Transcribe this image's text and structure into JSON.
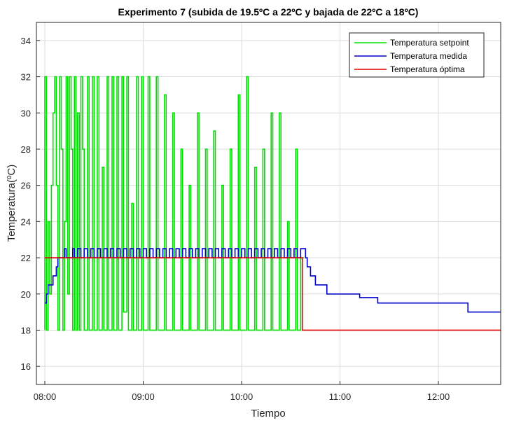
{
  "chart_data": {
    "type": "line",
    "title": "Experimento 7 (subida de 19.5ºC a 22ºC y bajada de 22ºC a 18ºC)",
    "xlabel": "Tiempo",
    "ylabel": "Temperatura(ºC)",
    "xlim": [
      "08:00",
      "12:38"
    ],
    "ylim": [
      15,
      35
    ],
    "xticks": [
      "08:00",
      "09:00",
      "10:00",
      "11:00",
      "12:00"
    ],
    "yticks": [
      16,
      18,
      20,
      22,
      24,
      26,
      28,
      30,
      32,
      34
    ],
    "grid": true,
    "legend_position": "top-right",
    "series": [
      {
        "name": "Temperatura setpoint",
        "color": "#00e000",
        "style": "step",
        "points": [
          [
            "08:00",
            18
          ],
          [
            "08:00",
            32
          ],
          [
            "08:01",
            18
          ],
          [
            "08:02",
            24
          ],
          [
            "08:03",
            20
          ],
          [
            "08:04",
            26
          ],
          [
            "08:05",
            30
          ],
          [
            "08:06",
            32
          ],
          [
            "08:07",
            26
          ],
          [
            "08:08",
            18
          ],
          [
            "08:09",
            32
          ],
          [
            "08:10",
            28
          ],
          [
            "08:11",
            18
          ],
          [
            "08:12",
            24
          ],
          [
            "08:13",
            32
          ],
          [
            "08:14",
            20
          ],
          [
            "08:15",
            32
          ],
          [
            "08:16",
            28
          ],
          [
            "08:17",
            18
          ],
          [
            "08:18",
            32
          ],
          [
            "08:19",
            18
          ],
          [
            "08:20",
            30
          ],
          [
            "08:21",
            18
          ],
          [
            "08:22",
            32
          ],
          [
            "08:23",
            28
          ],
          [
            "08:24",
            18
          ],
          [
            "08:26",
            32
          ],
          [
            "08:27",
            18
          ],
          [
            "08:29",
            32
          ],
          [
            "08:30",
            18
          ],
          [
            "08:32",
            32
          ],
          [
            "08:33",
            18
          ],
          [
            "08:35",
            27
          ],
          [
            "08:36",
            18
          ],
          [
            "08:38",
            32
          ],
          [
            "08:39",
            18
          ],
          [
            "08:41",
            32
          ],
          [
            "08:42",
            18
          ],
          [
            "08:44",
            32
          ],
          [
            "08:45",
            18
          ],
          [
            "08:47",
            32
          ],
          [
            "08:48",
            19
          ],
          [
            "08:50",
            32
          ],
          [
            "08:51",
            18
          ],
          [
            "08:53",
            25
          ],
          [
            "08:54",
            18
          ],
          [
            "08:56",
            32
          ],
          [
            "08:57",
            18
          ],
          [
            "08:59",
            32
          ],
          [
            "09:00",
            18
          ],
          [
            "09:03",
            32
          ],
          [
            "09:04",
            18
          ],
          [
            "09:08",
            32
          ],
          [
            "09:09",
            18
          ],
          [
            "09:13",
            31
          ],
          [
            "09:14",
            18
          ],
          [
            "09:18",
            30
          ],
          [
            "09:19",
            18
          ],
          [
            "09:23",
            28
          ],
          [
            "09:24",
            18
          ],
          [
            "09:28",
            26
          ],
          [
            "09:29",
            18
          ],
          [
            "09:33",
            30
          ],
          [
            "09:34",
            18
          ],
          [
            "09:38",
            28
          ],
          [
            "09:39",
            18
          ],
          [
            "09:43",
            29
          ],
          [
            "09:44",
            18
          ],
          [
            "09:48",
            26
          ],
          [
            "09:49",
            18
          ],
          [
            "09:53",
            28
          ],
          [
            "09:54",
            18
          ],
          [
            "09:58",
            31
          ],
          [
            "09:59",
            18
          ],
          [
            "10:03",
            32
          ],
          [
            "10:04",
            18
          ],
          [
            "10:08",
            27
          ],
          [
            "10:09",
            18
          ],
          [
            "10:13",
            28
          ],
          [
            "10:14",
            18
          ],
          [
            "10:18",
            30
          ],
          [
            "10:19",
            18
          ],
          [
            "10:23",
            30
          ],
          [
            "10:24",
            18
          ],
          [
            "10:28",
            24
          ],
          [
            "10:29",
            18
          ],
          [
            "10:33",
            28
          ],
          [
            "10:34",
            18
          ],
          [
            "10:36",
            22
          ],
          [
            "10:38",
            22
          ]
        ]
      },
      {
        "name": "Temperatura medida",
        "color": "#0000cc",
        "style": "step",
        "points": [
          [
            "08:00",
            19.5
          ],
          [
            "08:01",
            20
          ],
          [
            "08:02",
            20.5
          ],
          [
            "08:05",
            21
          ],
          [
            "08:07",
            21.5
          ],
          [
            "08:08",
            22
          ],
          [
            "08:10",
            22
          ],
          [
            "08:12",
            22.5
          ],
          [
            "08:13",
            22
          ],
          [
            "08:15",
            22
          ],
          [
            "08:17",
            22.5
          ],
          [
            "08:18",
            22
          ],
          [
            "08:20",
            22.5
          ],
          [
            "08:22",
            22
          ],
          [
            "08:24",
            22.5
          ],
          [
            "08:26",
            22
          ],
          [
            "08:28",
            22.5
          ],
          [
            "08:30",
            22
          ],
          [
            "08:32",
            22.5
          ],
          [
            "08:34",
            22
          ],
          [
            "08:36",
            22.5
          ],
          [
            "08:38",
            22
          ],
          [
            "08:40",
            22.5
          ],
          [
            "08:42",
            22
          ],
          [
            "08:44",
            22.5
          ],
          [
            "08:46",
            22
          ],
          [
            "08:48",
            22.5
          ],
          [
            "08:50",
            22
          ],
          [
            "08:52",
            22.5
          ],
          [
            "08:54",
            22
          ],
          [
            "08:56",
            22.5
          ],
          [
            "08:58",
            22
          ],
          [
            "09:00",
            22.5
          ],
          [
            "09:02",
            22
          ],
          [
            "09:04",
            22.5
          ],
          [
            "09:06",
            22
          ],
          [
            "09:08",
            22.5
          ],
          [
            "09:10",
            22
          ],
          [
            "09:12",
            22.5
          ],
          [
            "09:14",
            22
          ],
          [
            "09:16",
            22.5
          ],
          [
            "09:18",
            22
          ],
          [
            "09:20",
            22.5
          ],
          [
            "09:22",
            22
          ],
          [
            "09:24",
            22.5
          ],
          [
            "09:26",
            22
          ],
          [
            "09:28",
            22.5
          ],
          [
            "09:30",
            22
          ],
          [
            "09:32",
            22.5
          ],
          [
            "09:34",
            22
          ],
          [
            "09:36",
            22.5
          ],
          [
            "09:38",
            22
          ],
          [
            "09:40",
            22.5
          ],
          [
            "09:42",
            22
          ],
          [
            "09:44",
            22.5
          ],
          [
            "09:46",
            22
          ],
          [
            "09:48",
            22.5
          ],
          [
            "09:50",
            22
          ],
          [
            "09:52",
            22.5
          ],
          [
            "09:54",
            22
          ],
          [
            "09:56",
            22.5
          ],
          [
            "09:58",
            22
          ],
          [
            "10:00",
            22.5
          ],
          [
            "10:02",
            22
          ],
          [
            "10:04",
            22.5
          ],
          [
            "10:06",
            22
          ],
          [
            "10:08",
            22.5
          ],
          [
            "10:10",
            22
          ],
          [
            "10:12",
            22.5
          ],
          [
            "10:14",
            22
          ],
          [
            "10:16",
            22.5
          ],
          [
            "10:18",
            22
          ],
          [
            "10:20",
            22.5
          ],
          [
            "10:22",
            22
          ],
          [
            "10:24",
            22.5
          ],
          [
            "10:26",
            22
          ],
          [
            "10:28",
            22.5
          ],
          [
            "10:30",
            22
          ],
          [
            "10:32",
            22.5
          ],
          [
            "10:34",
            22
          ],
          [
            "10:36",
            22.5
          ],
          [
            "10:38",
            22.5
          ],
          [
            "10:39",
            22
          ],
          [
            "10:40",
            21.5
          ],
          [
            "10:42",
            21
          ],
          [
            "10:45",
            20.5
          ],
          [
            "10:50",
            20.5
          ],
          [
            "10:52",
            20
          ],
          [
            "11:00",
            20
          ],
          [
            "11:10",
            20
          ],
          [
            "11:12",
            19.8
          ],
          [
            "11:20",
            19.8
          ],
          [
            "11:23",
            19.5
          ],
          [
            "11:35",
            19.5
          ],
          [
            "12:17",
            19.5
          ],
          [
            "12:18",
            19
          ],
          [
            "12:38",
            19
          ]
        ]
      },
      {
        "name": "Temperatura óptima",
        "color": "#e00000",
        "style": "step",
        "points": [
          [
            "08:00",
            22
          ],
          [
            "10:37",
            22
          ],
          [
            "10:37",
            18
          ],
          [
            "12:38",
            18
          ]
        ]
      }
    ]
  }
}
